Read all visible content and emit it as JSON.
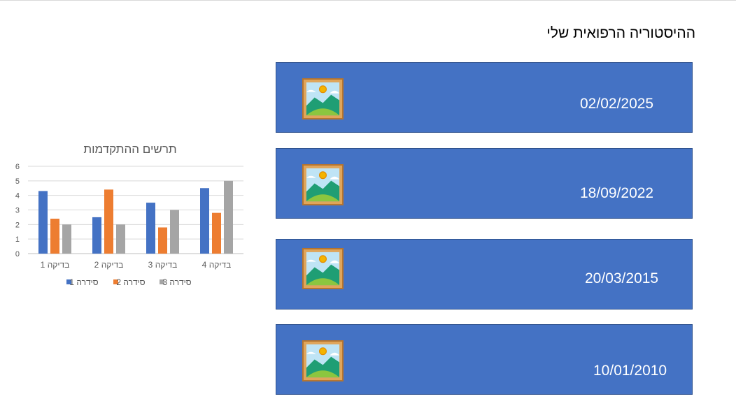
{
  "page": {
    "title": "ההיסטוריה הרפואית שלי"
  },
  "records": [
    {
      "date": "02/02/2025",
      "image_icon": "picture-icon"
    },
    {
      "date": "18/09/2022",
      "image_icon": "picture-icon"
    },
    {
      "date": "20/03/2015",
      "image_icon": "picture-icon"
    },
    {
      "date": "10/01/2010",
      "image_icon": "picture-icon"
    }
  ],
  "colors": {
    "record_fill": "#4472c4",
    "series1": "#4472c4",
    "series2": "#ed7d31",
    "series3": "#a5a5a5"
  },
  "chart_data": {
    "type": "bar",
    "title": "תרשים ההתקדמות",
    "categories": [
      "בדיקה 1",
      "בדיקה 2",
      "בדיקה 3",
      "בדיקה 4"
    ],
    "series": [
      {
        "name": "סידרה 1",
        "values": [
          4.3,
          2.5,
          3.5,
          4.5
        ]
      },
      {
        "name": "סידרה 2",
        "values": [
          2.4,
          4.4,
          1.8,
          2.8
        ]
      },
      {
        "name": "סידרה 3",
        "values": [
          2,
          2,
          3,
          5
        ]
      }
    ],
    "ylim": [
      0,
      6
    ],
    "yticks": [
      "0",
      "1",
      "2",
      "3",
      "4",
      "5",
      "6"
    ],
    "grid": true,
    "legend": "bottom"
  }
}
